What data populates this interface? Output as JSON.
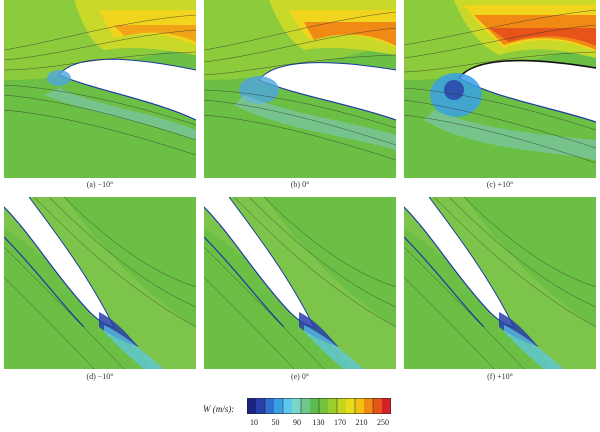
{
  "panels": [
    {
      "caption": "(a) −10°",
      "row": "top",
      "incidence": -10
    },
    {
      "caption": "(b) 0°",
      "row": "top",
      "incidence": 0
    },
    {
      "caption": "(c) +10°",
      "row": "top",
      "incidence": 10
    },
    {
      "caption": "(d) −10°",
      "row": "bottom",
      "incidence": -10
    },
    {
      "caption": "(e) 0°",
      "row": "bottom",
      "incidence": 0
    },
    {
      "caption": "(f) +10°",
      "row": "bottom",
      "incidence": 10
    }
  ],
  "colorbar": {
    "label": "W (m/s):",
    "ticks": [
      "10",
      "50",
      "90",
      "130",
      "170",
      "210",
      "250"
    ],
    "colors": [
      "#1a237e",
      "#283fa8",
      "#2f6fd0",
      "#3aa0e6",
      "#5cc8ec",
      "#7ad7c8",
      "#6cc98a",
      "#5dbb4e",
      "#74c23b",
      "#99cf2a",
      "#c3d61e",
      "#e8dc1a",
      "#f3c015",
      "#f08a14",
      "#e6541a",
      "#d2232a"
    ]
  }
}
